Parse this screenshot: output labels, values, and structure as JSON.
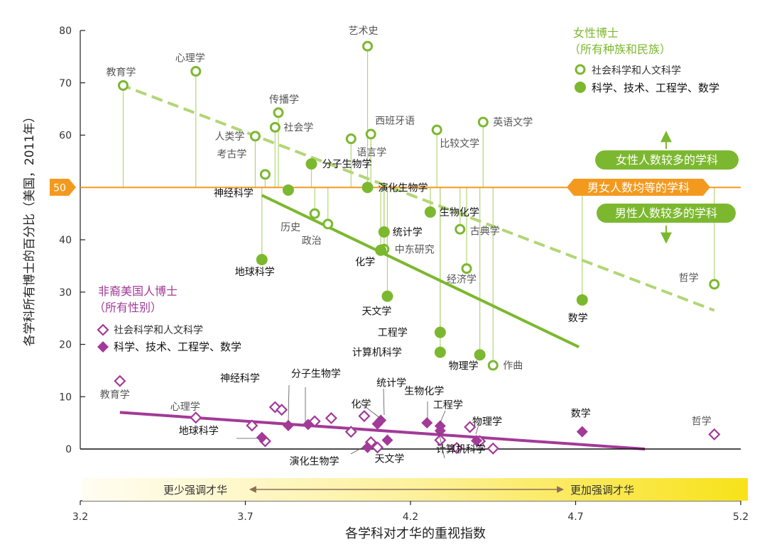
{
  "colors": {
    "green": "#7cb82f",
    "light_green": "#b2d675",
    "purple": "#a23a97",
    "orange": "#f39a1e",
    "axis": "#222222",
    "baseline": "#111111"
  },
  "chart_data": {
    "type": "scatter",
    "title": "",
    "xlabel": "各学科对才华的重视指数",
    "ylabel": "各学科所有博士的百分比（美国，2011年）",
    "xlim": [
      3.2,
      5.2
    ],
    "ylim": [
      0,
      80
    ],
    "xticks": [
      "3.2",
      "3.7",
      "4.2",
      "4.7",
      "5.2"
    ],
    "yticks": [
      "0",
      "10",
      "20",
      "30",
      "40",
      "50",
      "60",
      "70",
      "80"
    ],
    "parity_line": {
      "value": 50,
      "label": "50",
      "text": "男女人数均等的学科"
    },
    "arrow_annotations": {
      "more_women": "女性人数较多的学科",
      "more_men": "男性人数较多的学科"
    },
    "brilliance_bar": {
      "left_text": "更少强调才华",
      "right_text": "更加强调才华"
    },
    "legends": {
      "women": {
        "title": "女性博士",
        "subtitle": "（所有种族和民族）",
        "hollow": "社会科学和人文科学",
        "solid": "科学、技术、工程学、数学"
      },
      "african_american": {
        "title": "非裔美国人博士",
        "subtitle": "（所有性别）",
        "hollow": "社会科学和人文科学",
        "solid": "科学、技术、工程学、数学"
      }
    },
    "series": [
      {
        "name": "女性博士 - 社会科学和人文科学",
        "marker": "hollow-circle",
        "points": [
          {
            "label": "教育学",
            "x": 3.33,
            "y": 69.5
          },
          {
            "label": "心理学",
            "x": 3.55,
            "y": 72.2
          },
          {
            "label": "传播学",
            "x": 3.8,
            "y": 64.3
          },
          {
            "label": "社会学",
            "x": 3.79,
            "y": 61.5
          },
          {
            "label": "人类学",
            "x": 3.73,
            "y": 59.8
          },
          {
            "label": "考古学",
            "x": 3.76,
            "y": 52.5
          },
          {
            "label": "艺术史",
            "x": 4.07,
            "y": 77
          },
          {
            "label": "西班牙语",
            "x": 4.08,
            "y": 60.2
          },
          {
            "label": "语言学",
            "x": 4.02,
            "y": 59.3
          },
          {
            "label": "比较文学",
            "x": 4.28,
            "y": 61
          },
          {
            "label": "英语文学",
            "x": 4.42,
            "y": 62.5
          },
          {
            "label": "历史",
            "x": 3.91,
            "y": 45
          },
          {
            "label": "政治",
            "x": 3.95,
            "y": 43
          },
          {
            "label": "古典学",
            "x": 4.35,
            "y": 42
          },
          {
            "label": "中东研究",
            "x": 4.12,
            "y": 38.2
          },
          {
            "label": "经济学",
            "x": 4.37,
            "y": 34.5
          },
          {
            "label": "作曲",
            "x": 4.45,
            "y": 16
          },
          {
            "label": "哲学",
            "x": 5.12,
            "y": 31.5
          }
        ]
      },
      {
        "name": "女性博士 - 科学、技术、工程学、数学",
        "marker": "solid-circle",
        "points": [
          {
            "label": "分子生物学",
            "x": 3.9,
            "y": 54.5
          },
          {
            "label": "神经科学",
            "x": 3.83,
            "y": 49.5
          },
          {
            "label": "演化生物学",
            "x": 4.07,
            "y": 50
          },
          {
            "label": "生物化学",
            "x": 4.26,
            "y": 45.3
          },
          {
            "label": "统计学",
            "x": 4.12,
            "y": 41.5
          },
          {
            "label": "化学",
            "x": 4.11,
            "y": 38
          },
          {
            "label": "地球科学",
            "x": 3.75,
            "y": 36.2
          },
          {
            "label": "天文学",
            "x": 4.13,
            "y": 29.2
          },
          {
            "label": "数学",
            "x": 4.72,
            "y": 28.5
          },
          {
            "label": "工程学",
            "x": 4.29,
            "y": 22.3
          },
          {
            "label": "计算机科学",
            "x": 4.29,
            "y": 18.5
          },
          {
            "label": "物理学",
            "x": 4.41,
            "y": 18
          }
        ]
      },
      {
        "name": "非裔美国人博士 - 社会科学和人文科学",
        "marker": "hollow-diamond",
        "points": [
          {
            "label": "教育学",
            "x": 3.32,
            "y": 13
          },
          {
            "label": "心理学",
            "x": 3.55,
            "y": 6
          },
          {
            "label": "",
            "x": 3.72,
            "y": 4.5
          },
          {
            "label": "",
            "x": 3.76,
            "y": 1.5
          },
          {
            "label": "",
            "x": 3.79,
            "y": 8
          },
          {
            "label": "",
            "x": 3.81,
            "y": 7.5
          },
          {
            "label": "",
            "x": 3.91,
            "y": 5.3
          },
          {
            "label": "",
            "x": 3.96,
            "y": 5.9
          },
          {
            "label": "",
            "x": 4.02,
            "y": 3.3
          },
          {
            "label": "",
            "x": 4.06,
            "y": 6.3
          },
          {
            "label": "",
            "x": 4.08,
            "y": 1.3
          },
          {
            "label": "",
            "x": 4.1,
            "y": 0.3
          },
          {
            "label": "",
            "x": 4.29,
            "y": 1.7
          },
          {
            "label": "",
            "x": 4.34,
            "y": 0.2
          },
          {
            "label": "",
            "x": 4.38,
            "y": 4.2
          },
          {
            "label": "",
            "x": 4.41,
            "y": 1.5
          },
          {
            "label": "",
            "x": 4.45,
            "y": 0.1
          },
          {
            "label": "哲学",
            "x": 5.12,
            "y": 2.8
          }
        ]
      },
      {
        "name": "非裔美国人博士 - 科学、技术、工程学、数学",
        "marker": "solid-diamond",
        "points": [
          {
            "label": "神经科学",
            "x": 3.83,
            "y": 4.5
          },
          {
            "label": "分子生物学",
            "x": 3.89,
            "y": 4.7
          },
          {
            "label": "地球科学",
            "x": 3.75,
            "y": 2.2
          },
          {
            "label": "演化生物学",
            "x": 4.07,
            "y": 0.3
          },
          {
            "label": "化学",
            "x": 4.1,
            "y": 4.8
          },
          {
            "label": "统计学",
            "x": 4.11,
            "y": 5.5
          },
          {
            "label": "天文学",
            "x": 4.13,
            "y": 1.7
          },
          {
            "label": "生物化学",
            "x": 4.25,
            "y": 5
          },
          {
            "label": "工程学",
            "x": 4.29,
            "y": 4.4
          },
          {
            "label": "计算机科学",
            "x": 4.29,
            "y": 3.5
          },
          {
            "label": "物理学",
            "x": 4.4,
            "y": 1.6
          },
          {
            "label": "数学",
            "x": 4.72,
            "y": 3.3
          }
        ]
      }
    ],
    "trend_lines": [
      {
        "name": "女性博士 - 社会科学和人文科学 趋势",
        "style": "dashed",
        "x": [
          3.32,
          5.12
        ],
        "y": [
          69.7,
          26.5
        ]
      },
      {
        "name": "女性博士 - 科学、技术、工程学、数学 趋势",
        "style": "solid",
        "x": [
          3.75,
          4.71
        ],
        "y": [
          48.5,
          19.5
        ]
      },
      {
        "name": "非裔美国人博士 趋势",
        "style": "solid",
        "x": [
          3.32,
          4.91
        ],
        "y": [
          7,
          0
        ]
      }
    ]
  }
}
